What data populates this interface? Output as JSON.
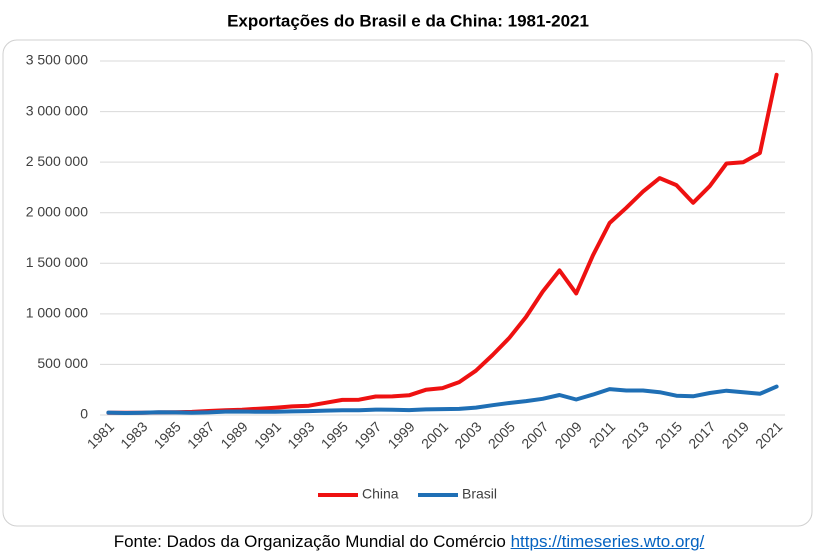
{
  "chart_data": {
    "type": "line",
    "title": "Exportações do Brasil e da China: 1981-2021",
    "categories": [
      "1981",
      null,
      "1983",
      null,
      "1985",
      null,
      "1987",
      null,
      "1989",
      null,
      "1991",
      null,
      "1993",
      null,
      "1995",
      null,
      "1997",
      null,
      "1999",
      null,
      "2001",
      null,
      "2003",
      null,
      "2005",
      null,
      "2007",
      null,
      "2009",
      null,
      "2011",
      null,
      "2013",
      null,
      "2015",
      null,
      "2017",
      null,
      "2019",
      null,
      "2021"
    ],
    "series": [
      {
        "name": "China",
        "color": "#ee1111",
        "values": [
          22000,
          22300,
          22200,
          26100,
          27400,
          30900,
          39400,
          47500,
          52500,
          62100,
          71800,
          84900,
          91700,
          121000,
          148800,
          151000,
          182800,
          183700,
          194900,
          249200,
          266100,
          325600,
          438200,
          593300,
          762000,
          969000,
          1220000,
          1430000,
          1202000,
          1578000,
          1898000,
          2049000,
          2209000,
          2342000,
          2273000,
          2098000,
          2263000,
          2487000,
          2499000,
          2590000,
          3364000
        ]
      },
      {
        "name": "Brasil",
        "color": "#1f6fb5",
        "values": [
          23300,
          20200,
          21900,
          27000,
          25600,
          22300,
          26200,
          33800,
          34400,
          31400,
          31600,
          35800,
          38600,
          43500,
          46500,
          47700,
          53000,
          51100,
          48000,
          55100,
          58300,
          60400,
          73100,
          96700,
          118500,
          137800,
          160600,
          197900,
          153000,
          201900,
          256000,
          242600,
          242200,
          225100,
          191100,
          185200,
          217700,
          239900,
          225400,
          209200,
          280800
        ]
      }
    ],
    "ylim": [
      0,
      3500000
    ],
    "yticks": [
      0,
      {
        "value": 500000,
        "label": "500 000"
      },
      {
        "value": 1000000,
        "label": "1 000 000"
      },
      {
        "value": 1500000,
        "label": "1 500 000"
      },
      {
        "value": 2000000,
        "label": "2 000 000"
      },
      {
        "value": 2500000,
        "label": "2 500 000"
      },
      {
        "value": 3000000,
        "label": "3 000 000"
      },
      {
        "value": 3500000,
        "label": "3 500 000"
      }
    ],
    "grid": true,
    "legend": "bottom",
    "source": "Fonte: Dados da Organização Mundial do Comércio",
    "source_link": "https://timeseries.wto.org/"
  }
}
